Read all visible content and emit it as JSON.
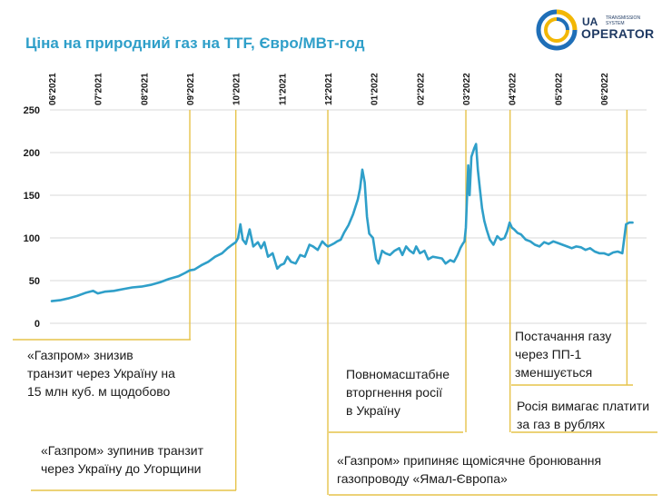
{
  "title": "Ціна на природний газ на TTF, Євро/МВт-год",
  "logo": {
    "brand_prefix": "UA",
    "brand_sub": [
      "TRANSMISSION",
      "SYSTEM"
    ],
    "brand_main": "OPERATOR",
    "colors": {
      "ring_blue": "#1f6fb8",
      "ring_yellow": "#f2b705",
      "text": "#1f3a63"
    }
  },
  "chart_data": {
    "type": "line",
    "title": "Ціна на природний газ на TTF, Євро/МВт-год",
    "xlabel": "",
    "ylabel": "",
    "ylim": [
      0,
      250
    ],
    "yticks": [
      0,
      50,
      100,
      150,
      200,
      250
    ],
    "x_ticks": [
      "06'2021",
      "07'2021",
      "08'2021",
      "09'2021",
      "10'2021",
      "11'2021",
      "12'2021",
      "01'2022",
      "02'2022",
      "03'2022",
      "04'2022",
      "05'2022",
      "06'2022"
    ],
    "grid": "horizontal",
    "colors": {
      "line": "#2f9fc9",
      "event_line": "#e6c34a",
      "grid": "#d9d9d9",
      "axis_text": "#1a1a1a"
    },
    "series": [
      {
        "name": "TTF",
        "points": [
          [
            0.0,
            26
          ],
          [
            0.18,
            27
          ],
          [
            0.35,
            29
          ],
          [
            0.55,
            32
          ],
          [
            0.75,
            36
          ],
          [
            0.9,
            38
          ],
          [
            1.0,
            35
          ],
          [
            1.15,
            37
          ],
          [
            1.35,
            38
          ],
          [
            1.55,
            40
          ],
          [
            1.75,
            42
          ],
          [
            1.95,
            43
          ],
          [
            2.15,
            45
          ],
          [
            2.35,
            48
          ],
          [
            2.55,
            52
          ],
          [
            2.75,
            55
          ],
          [
            2.9,
            59
          ],
          [
            3.0,
            62
          ],
          [
            3.1,
            63
          ],
          [
            3.25,
            68
          ],
          [
            3.4,
            72
          ],
          [
            3.55,
            78
          ],
          [
            3.7,
            82
          ],
          [
            3.82,
            88
          ],
          [
            3.92,
            92
          ],
          [
            4.0,
            95
          ],
          [
            4.05,
            100
          ],
          [
            4.1,
            116
          ],
          [
            4.15,
            98
          ],
          [
            4.22,
            93
          ],
          [
            4.3,
            110
          ],
          [
            4.38,
            90
          ],
          [
            4.48,
            95
          ],
          [
            4.55,
            88
          ],
          [
            4.62,
            95
          ],
          [
            4.7,
            78
          ],
          [
            4.8,
            82
          ],
          [
            4.9,
            64
          ],
          [
            4.97,
            68
          ],
          [
            5.05,
            70
          ],
          [
            5.12,
            78
          ],
          [
            5.2,
            72
          ],
          [
            5.3,
            70
          ],
          [
            5.4,
            80
          ],
          [
            5.5,
            78
          ],
          [
            5.6,
            92
          ],
          [
            5.68,
            90
          ],
          [
            5.78,
            86
          ],
          [
            5.88,
            96
          ],
          [
            5.95,
            92
          ],
          [
            6.0,
            90
          ],
          [
            6.08,
            92
          ],
          [
            6.15,
            94
          ],
          [
            6.2,
            96
          ],
          [
            6.28,
            98
          ],
          [
            6.35,
            106
          ],
          [
            6.45,
            115
          ],
          [
            6.55,
            128
          ],
          [
            6.65,
            145
          ],
          [
            6.7,
            158
          ],
          [
            6.75,
            180
          ],
          [
            6.8,
            165
          ],
          [
            6.85,
            125
          ],
          [
            6.9,
            105
          ],
          [
            6.98,
            100
          ],
          [
            7.05,
            75
          ],
          [
            7.1,
            70
          ],
          [
            7.18,
            85
          ],
          [
            7.25,
            82
          ],
          [
            7.35,
            80
          ],
          [
            7.45,
            85
          ],
          [
            7.55,
            88
          ],
          [
            7.62,
            80
          ],
          [
            7.7,
            90
          ],
          [
            7.78,
            85
          ],
          [
            7.86,
            82
          ],
          [
            7.92,
            90
          ],
          [
            8.0,
            82
          ],
          [
            8.1,
            85
          ],
          [
            8.18,
            75
          ],
          [
            8.28,
            78
          ],
          [
            8.38,
            77
          ],
          [
            8.48,
            76
          ],
          [
            8.56,
            70
          ],
          [
            8.66,
            74
          ],
          [
            8.74,
            72
          ],
          [
            8.82,
            80
          ],
          [
            8.88,
            88
          ],
          [
            8.93,
            93
          ],
          [
            8.97,
            96
          ],
          [
            9.0,
            112
          ],
          [
            9.05,
            185
          ],
          [
            9.08,
            150
          ],
          [
            9.12,
            195
          ],
          [
            9.18,
            205
          ],
          [
            9.22,
            210
          ],
          [
            9.26,
            180
          ],
          [
            9.3,
            160
          ],
          [
            9.35,
            135
          ],
          [
            9.4,
            120
          ],
          [
            9.45,
            110
          ],
          [
            9.52,
            98
          ],
          [
            9.6,
            92
          ],
          [
            9.68,
            102
          ],
          [
            9.76,
            98
          ],
          [
            9.84,
            100
          ],
          [
            9.9,
            108
          ],
          [
            9.95,
            118
          ],
          [
            10.0,
            112
          ],
          [
            10.05,
            110
          ],
          [
            10.12,
            106
          ],
          [
            10.2,
            104
          ],
          [
            10.3,
            98
          ],
          [
            10.4,
            96
          ],
          [
            10.5,
            92
          ],
          [
            10.6,
            90
          ],
          [
            10.7,
            95
          ],
          [
            10.8,
            93
          ],
          [
            10.9,
            96
          ],
          [
            11.0,
            94
          ],
          [
            11.1,
            92
          ],
          [
            11.2,
            90
          ],
          [
            11.3,
            88
          ],
          [
            11.4,
            90
          ],
          [
            11.5,
            89
          ],
          [
            11.6,
            86
          ],
          [
            11.7,
            88
          ],
          [
            11.8,
            84
          ],
          [
            11.9,
            82
          ],
          [
            12.0,
            82
          ],
          [
            12.1,
            80
          ],
          [
            12.2,
            83
          ],
          [
            12.3,
            84
          ],
          [
            12.4,
            82
          ],
          [
            12.48,
            116
          ],
          [
            12.55,
            118
          ],
          [
            12.62,
            118
          ]
        ]
      }
    ],
    "events": [
      {
        "x": 3.0,
        "label_lines": [
          "«Газпром» знизив",
          "транзит через Україну на",
          "15 млн куб. м щодобово"
        ]
      },
      {
        "x": 4.0,
        "label_lines": [
          "«Газпром» зупинив транзит",
          "через Україну до Угорщини"
        ]
      },
      {
        "x": 6.0,
        "label_lines": [
          "«Газпром» припиняє щомісячне бронювання",
          "газопроводу «Ямал-Європа»"
        ]
      },
      {
        "x": 9.0,
        "label_lines": [
          "Повномасштабне",
          "вторгнення росії",
          "в Україну"
        ]
      },
      {
        "x": 9.96,
        "label_lines": [
          "Росія вимагає платити",
          "за газ в рублях"
        ]
      },
      {
        "x": 12.5,
        "label_lines": [
          "Постачання газу",
          "через ПП-1",
          "зменшується"
        ]
      }
    ]
  }
}
